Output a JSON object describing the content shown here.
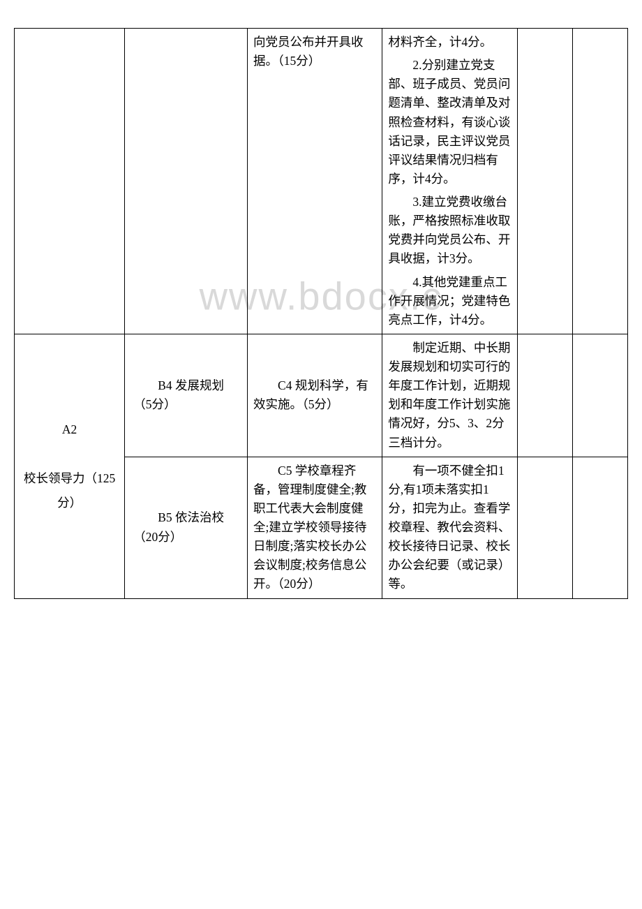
{
  "watermark": "www.bdocx.c",
  "row1": {
    "c": "向党员公布并开具收据。（15分）",
    "d1": "材料齐全，计4分。",
    "d2": "2.分别建立党支部、班子成员、党员问题清单、整改清单及对照检查材料，有谈心谈话记录，民主评议党员评议结果情况归档有序，计4分。",
    "d3": "3.建立党费收缴台账，严格按照标准收取党费并向党员公布、开具收据，计3分。",
    "d4": "4.其他党建重点工作开展情况；党建特色亮点工作，计4分。"
  },
  "a2": {
    "label_line1": "A2",
    "label_line2": "校长领导力（125分）"
  },
  "row2": {
    "b": "B4 发展规划 （5分）",
    "c": "C4 规划科学，有效实施。（5分）",
    "d": "制定近期、中长期发展规划和切实可行的年度工作计划，近期规划和年度工作计划实施情况好，分5、3、2分三档计分。"
  },
  "row3": {
    "b": "B5 依法治校 （20分）",
    "c": "C5 学校章程齐备，管理制度健全;教职工代表大会制度健全;建立学校领导接待日制度;落实校长办公会议制度;校务信息公开。（20分）",
    "d": "有一项不健全扣1分,有1项未落实扣1分，扣完为止。查看学校章程、教代会资料、校长接待日记录、校长办公会纪要（或记录）等。"
  }
}
